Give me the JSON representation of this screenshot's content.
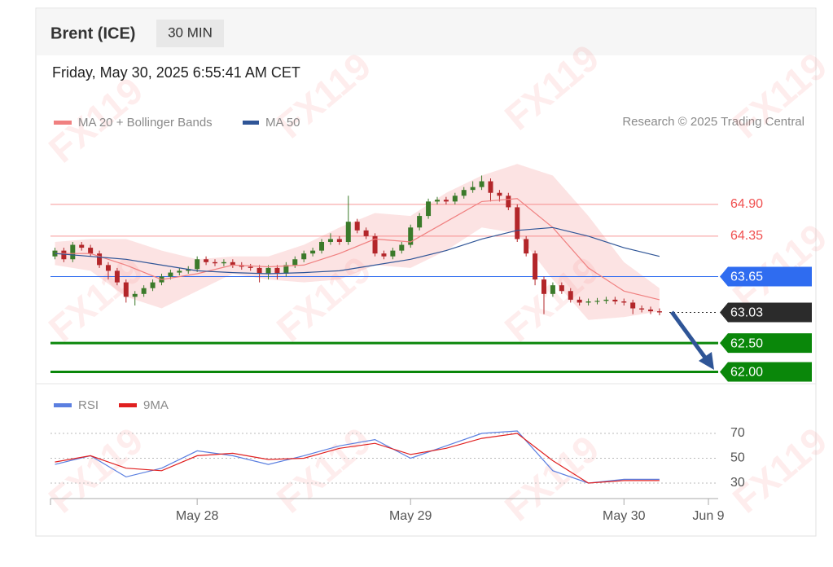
{
  "header": {
    "title": "Brent (ICE)",
    "timeframe": "30 MIN",
    "date": "Friday, May 30, 2025 6:55:41 AM CET"
  },
  "credit": "Research © 2025 Trading Central",
  "watermark": "FX119",
  "chart_data": [
    {
      "type": "candlestick",
      "xlim": [
        0,
        148
      ],
      "ylim": [
        61.8,
        65.9
      ],
      "up_color": "#3b7a2a",
      "down_color": "#b3262a",
      "x": [
        1,
        3,
        5,
        7,
        9,
        11,
        13,
        15,
        17,
        19,
        21,
        23,
        25,
        27,
        29,
        31,
        33,
        35,
        37,
        39,
        41,
        43,
        45,
        47,
        49,
        51,
        53,
        55,
        57,
        59,
        61,
        63,
        65,
        67,
        69,
        71,
        73,
        75,
        77,
        79,
        81,
        83,
        85,
        87,
        89,
        91,
        93,
        95,
        97,
        99,
        101,
        103,
        105,
        107,
        109,
        111,
        113,
        115,
        117,
        119,
        121,
        123,
        125,
        127,
        129,
        131,
        133,
        135,
        137
      ],
      "open": [
        64.0,
        64.1,
        63.95,
        64.2,
        64.15,
        64.05,
        63.85,
        63.75,
        63.55,
        63.3,
        63.35,
        63.45,
        63.55,
        63.65,
        63.72,
        63.75,
        63.78,
        63.95,
        63.9,
        63.88,
        63.9,
        63.85,
        63.82,
        63.8,
        63.7,
        63.8,
        63.7,
        63.85,
        63.95,
        64.05,
        64.1,
        64.25,
        64.3,
        64.25,
        64.6,
        64.45,
        64.35,
        64.05,
        64.0,
        64.1,
        64.2,
        64.5,
        64.7,
        64.95,
        64.98,
        64.95,
        65.05,
        65.15,
        65.2,
        65.3,
        65.1,
        65.05,
        64.85,
        64.3,
        64.05,
        63.6,
        63.35,
        63.5,
        63.4,
        63.25,
        63.2,
        63.22,
        63.23,
        63.25,
        63.22,
        63.2,
        63.1,
        63.08,
        63.05
      ],
      "high": [
        64.15,
        64.15,
        64.25,
        64.25,
        64.2,
        64.1,
        63.9,
        63.8,
        63.6,
        63.4,
        63.5,
        63.6,
        63.7,
        63.77,
        63.8,
        63.83,
        64.0,
        64.0,
        63.95,
        63.95,
        63.95,
        63.9,
        63.87,
        63.85,
        63.85,
        63.85,
        63.9,
        64.0,
        64.1,
        64.15,
        64.3,
        64.4,
        64.35,
        65.05,
        64.65,
        64.5,
        64.4,
        64.1,
        64.15,
        64.25,
        64.55,
        64.75,
        65.0,
        65.03,
        65.03,
        65.1,
        65.2,
        65.3,
        65.4,
        65.35,
        65.15,
        65.1,
        64.9,
        64.35,
        64.1,
        63.65,
        63.55,
        63.55,
        63.45,
        63.3,
        63.27,
        63.28,
        63.3,
        63.3,
        63.27,
        63.25,
        63.15,
        63.13,
        63.1
      ],
      "low": [
        63.95,
        63.9,
        63.9,
        64.1,
        64.0,
        63.8,
        63.6,
        63.5,
        63.2,
        63.15,
        63.3,
        63.4,
        63.5,
        63.6,
        63.67,
        63.7,
        63.73,
        63.85,
        63.83,
        63.83,
        63.8,
        63.77,
        63.75,
        63.55,
        63.6,
        63.6,
        63.65,
        63.8,
        63.9,
        64.0,
        64.05,
        64.2,
        64.2,
        64.2,
        64.4,
        64.3,
        64.0,
        63.95,
        63.95,
        64.05,
        64.15,
        64.45,
        64.65,
        64.9,
        64.9,
        64.9,
        65.0,
        65.1,
        65.15,
        64.95,
        64.95,
        64.8,
        64.25,
        64.0,
        63.5,
        63.0,
        63.3,
        63.35,
        63.2,
        63.15,
        63.15,
        63.17,
        63.18,
        63.17,
        63.15,
        63.0,
        63.03,
        63.0,
        62.98
      ],
      "close": [
        64.1,
        63.95,
        64.2,
        64.15,
        64.05,
        63.85,
        63.75,
        63.55,
        63.3,
        63.35,
        63.45,
        63.55,
        63.65,
        63.72,
        63.75,
        63.78,
        63.95,
        63.9,
        63.88,
        63.9,
        63.85,
        63.82,
        63.8,
        63.7,
        63.8,
        63.7,
        63.85,
        63.95,
        64.05,
        64.1,
        64.25,
        64.3,
        64.25,
        64.6,
        64.45,
        64.35,
        64.05,
        64.0,
        64.1,
        64.2,
        64.5,
        64.7,
        64.95,
        64.98,
        64.95,
        65.05,
        65.15,
        65.2,
        65.3,
        65.1,
        65.05,
        64.85,
        64.3,
        64.05,
        63.6,
        63.35,
        63.5,
        63.4,
        63.25,
        63.2,
        63.22,
        63.23,
        63.25,
        63.22,
        63.2,
        63.1,
        63.08,
        63.05,
        63.03
      ],
      "series": [
        {
          "name": "MA 20 + Bollinger Bands",
          "color": "#f08080",
          "x": [
            1,
            9,
            17,
            25,
            33,
            41,
            49,
            57,
            65,
            73,
            81,
            89,
            97,
            105,
            113,
            121,
            129,
            137
          ],
          "values": [
            64.05,
            64.05,
            63.85,
            63.6,
            63.7,
            63.85,
            63.82,
            63.85,
            64.05,
            64.3,
            64.25,
            64.6,
            64.95,
            65.0,
            64.5,
            63.8,
            63.4,
            63.25
          ],
          "upper": [
            64.25,
            64.3,
            64.3,
            64.1,
            63.95,
            64.0,
            64.0,
            64.2,
            64.5,
            64.75,
            64.7,
            65.1,
            65.4,
            65.6,
            65.4,
            64.7,
            63.9,
            63.45
          ],
          "lower": [
            63.85,
            63.75,
            63.3,
            63.1,
            63.4,
            63.7,
            63.6,
            63.55,
            63.6,
            63.85,
            63.8,
            64.1,
            64.5,
            64.4,
            63.6,
            62.9,
            62.95,
            63.05
          ]
        },
        {
          "name": "MA 50",
          "color": "#2f5597",
          "x": [
            1,
            9,
            17,
            25,
            33,
            41,
            49,
            57,
            65,
            73,
            81,
            89,
            97,
            105,
            113,
            121,
            129,
            137
          ],
          "values": [
            64.05,
            64.0,
            63.95,
            63.85,
            63.75,
            63.72,
            63.7,
            63.72,
            63.75,
            63.85,
            63.95,
            64.1,
            64.3,
            64.45,
            64.5,
            64.35,
            64.15,
            64.0
          ]
        }
      ],
      "levels": [
        {
          "value": 64.9,
          "label": "64.90",
          "color": "#f05050",
          "kind": "text"
        },
        {
          "value": 64.35,
          "label": "64.35",
          "color": "#f05050",
          "kind": "text"
        },
        {
          "value": 63.65,
          "label": "63.65",
          "color": "#2f6cf0",
          "kind": "tag"
        },
        {
          "value": 63.03,
          "label": "63.03",
          "color": "#2b2b2b",
          "kind": "tag"
        },
        {
          "value": 62.5,
          "label": "62.50",
          "color": "#0a870a",
          "kind": "tag"
        },
        {
          "value": 62,
          "label": "62.00",
          "color": "#0a870a",
          "kind": "tag"
        }
      ]
    },
    {
      "type": "line",
      "xlim": [
        0,
        148
      ],
      "ylim": [
        18,
        88
      ],
      "yticks": [
        70,
        50,
        30
      ],
      "xticks": [
        {
          "value": 33,
          "label": "May 28"
        },
        {
          "value": 81,
          "label": "May 29"
        },
        {
          "value": 129,
          "label": "May 30"
        },
        {
          "value": 148,
          "label": "Jun 9"
        }
      ],
      "x": [
        1,
        9,
        17,
        25,
        33,
        41,
        49,
        57,
        65,
        73,
        81,
        89,
        97,
        105,
        113,
        121,
        129,
        137
      ],
      "series": [
        {
          "name": "RSI",
          "color": "#5b7fe0",
          "values": [
            45,
            52,
            35,
            42,
            56,
            52,
            45,
            52,
            60,
            65,
            50,
            60,
            70,
            72,
            40,
            30,
            33,
            33
          ]
        },
        {
          "name": "9MA",
          "color": "#e02020",
          "values": [
            47,
            52,
            42,
            40,
            52,
            54,
            49,
            50,
            58,
            62,
            53,
            58,
            66,
            70,
            48,
            30,
            32,
            32
          ]
        }
      ]
    }
  ]
}
